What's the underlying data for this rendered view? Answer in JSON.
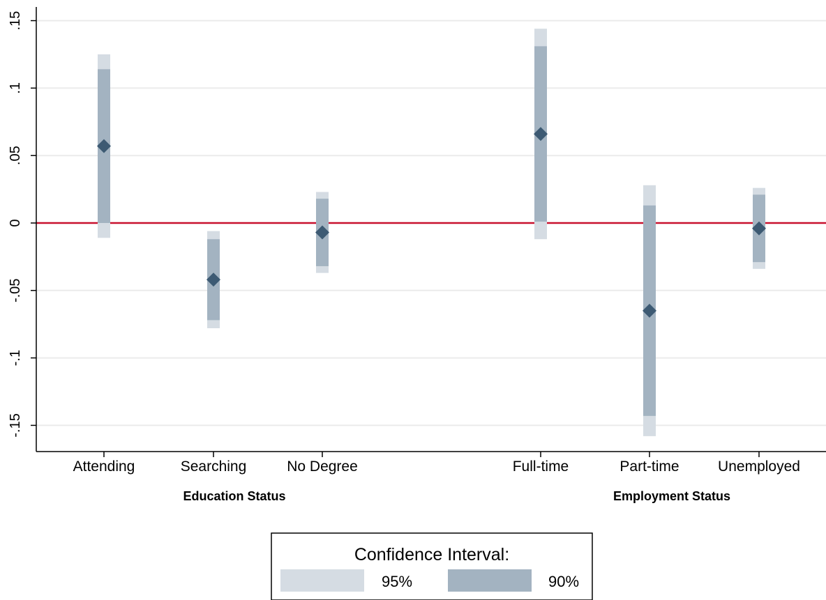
{
  "chart_data": {
    "type": "scatter",
    "title": "",
    "xlabel": "",
    "ylabel": "",
    "ylim": [
      -0.17,
      0.155
    ],
    "yticks": [
      0.15,
      0.1,
      0.05,
      0,
      -0.05,
      -0.1,
      -0.15
    ],
    "ytick_labels": [
      ".15",
      ".1",
      ".05",
      "0",
      "-.05",
      "-.1",
      "-.15"
    ],
    "grid": true,
    "reference_line": {
      "y": 0,
      "color": "#c8102e"
    },
    "groups": [
      {
        "label": "Education Status",
        "categories": [
          "Attending",
          "Searching",
          "No Degree"
        ]
      },
      {
        "label": "Employment Status",
        "categories": [
          "Full-time",
          "Part-time",
          "Unemployed"
        ]
      }
    ],
    "points": [
      {
        "category": "Attending",
        "estimate": 0.057,
        "ci90": [
          0.0,
          0.114
        ],
        "ci95": [
          -0.011,
          0.125
        ]
      },
      {
        "category": "Searching",
        "estimate": -0.042,
        "ci90": [
          -0.072,
          -0.012
        ],
        "ci95": [
          -0.078,
          -0.006
        ]
      },
      {
        "category": "No Degree",
        "estimate": -0.007,
        "ci90": [
          -0.032,
          0.018
        ],
        "ci95": [
          -0.037,
          0.023
        ]
      },
      {
        "category": "Full-time",
        "estimate": 0.066,
        "ci90": [
          0.001,
          0.131
        ],
        "ci95": [
          -0.012,
          0.144
        ]
      },
      {
        "category": "Part-time",
        "estimate": -0.065,
        "ci90": [
          -0.143,
          0.013
        ],
        "ci95": [
          -0.158,
          0.028
        ]
      },
      {
        "category": "Unemployed",
        "estimate": -0.004,
        "ci90": [
          -0.029,
          0.021
        ],
        "ci95": [
          -0.034,
          0.026
        ]
      }
    ],
    "colors": {
      "ci95": "#d5dce3",
      "ci90": "#a3b3c1",
      "marker": "#3d5a73",
      "reference": "#c8102e"
    },
    "legend": {
      "title": "Confidence Interval:",
      "placement": "bottom-center",
      "items": [
        {
          "label": "95%",
          "key": "ci95"
        },
        {
          "label": "90%",
          "key": "ci90"
        }
      ]
    }
  }
}
